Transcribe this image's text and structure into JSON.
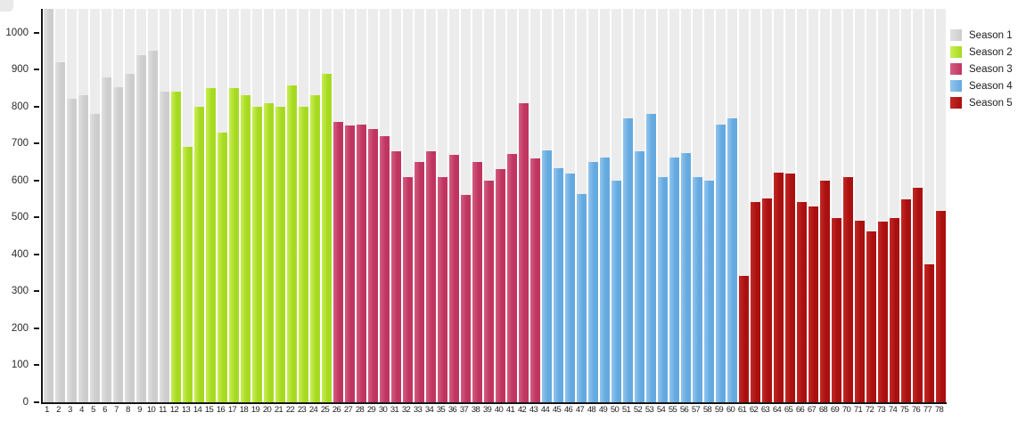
{
  "chart_data": {
    "type": "bar",
    "title": "",
    "xlabel": "",
    "ylabel": "",
    "ylim": [
      0,
      1064
    ],
    "yticks": [
      0,
      100,
      200,
      300,
      400,
      500,
      600,
      700,
      800,
      900,
      1000
    ],
    "grid": "off",
    "legend_position": "top-right",
    "column_background": "#ececec",
    "categories": [
      1,
      2,
      3,
      4,
      5,
      6,
      7,
      8,
      9,
      10,
      11,
      12,
      13,
      14,
      15,
      16,
      17,
      18,
      19,
      20,
      21,
      22,
      23,
      24,
      25,
      26,
      27,
      28,
      29,
      30,
      31,
      32,
      33,
      34,
      35,
      36,
      37,
      38,
      39,
      40,
      41,
      42,
      43,
      44,
      45,
      46,
      47,
      48,
      49,
      50,
      51,
      52,
      53,
      54,
      55,
      56,
      57,
      58,
      59,
      60,
      61,
      62,
      63,
      64,
      65,
      66,
      67,
      68,
      69,
      70,
      71,
      72,
      73,
      74,
      75,
      76,
      77,
      78
    ],
    "series": [
      {
        "name": "Season 1",
        "color": "#cdcdcd",
        "color_light": "#e0e0e0",
        "first_episode": 1,
        "values": [
          1064,
          920,
          821,
          831,
          780,
          878,
          851,
          889,
          938,
          950,
          840
        ]
      },
      {
        "name": "Season 2",
        "color": "#a6da20",
        "color_light": "#c9ee55",
        "first_episode": 12,
        "values": [
          841,
          690,
          800,
          849,
          730,
          849,
          830,
          799,
          810,
          800,
          856,
          800,
          831,
          888
        ]
      },
      {
        "name": "Season 3",
        "color": "#bf3560",
        "color_light": "#d35d82",
        "first_episode": 26,
        "values": [
          759,
          748,
          751,
          739,
          721,
          680,
          609,
          651,
          680,
          610,
          670,
          561,
          650,
          600,
          630,
          672,
          810,
          660
        ]
      },
      {
        "name": "Season 4",
        "color": "#64a9e0",
        "color_light": "#92c5ee",
        "first_episode": 44,
        "values": [
          681,
          632,
          618,
          563,
          651,
          661,
          600,
          769,
          678,
          781,
          609,
          662,
          673,
          610,
          600,
          751,
          769
        ]
      },
      {
        "name": "Season 5",
        "color": "#a9100f",
        "color_light": "#c22a26",
        "first_episode": 61,
        "values": [
          343,
          541,
          551,
          620,
          619,
          542,
          530,
          600,
          498,
          609,
          490,
          462,
          488,
          499,
          550,
          580,
          374,
          518
        ]
      }
    ]
  }
}
